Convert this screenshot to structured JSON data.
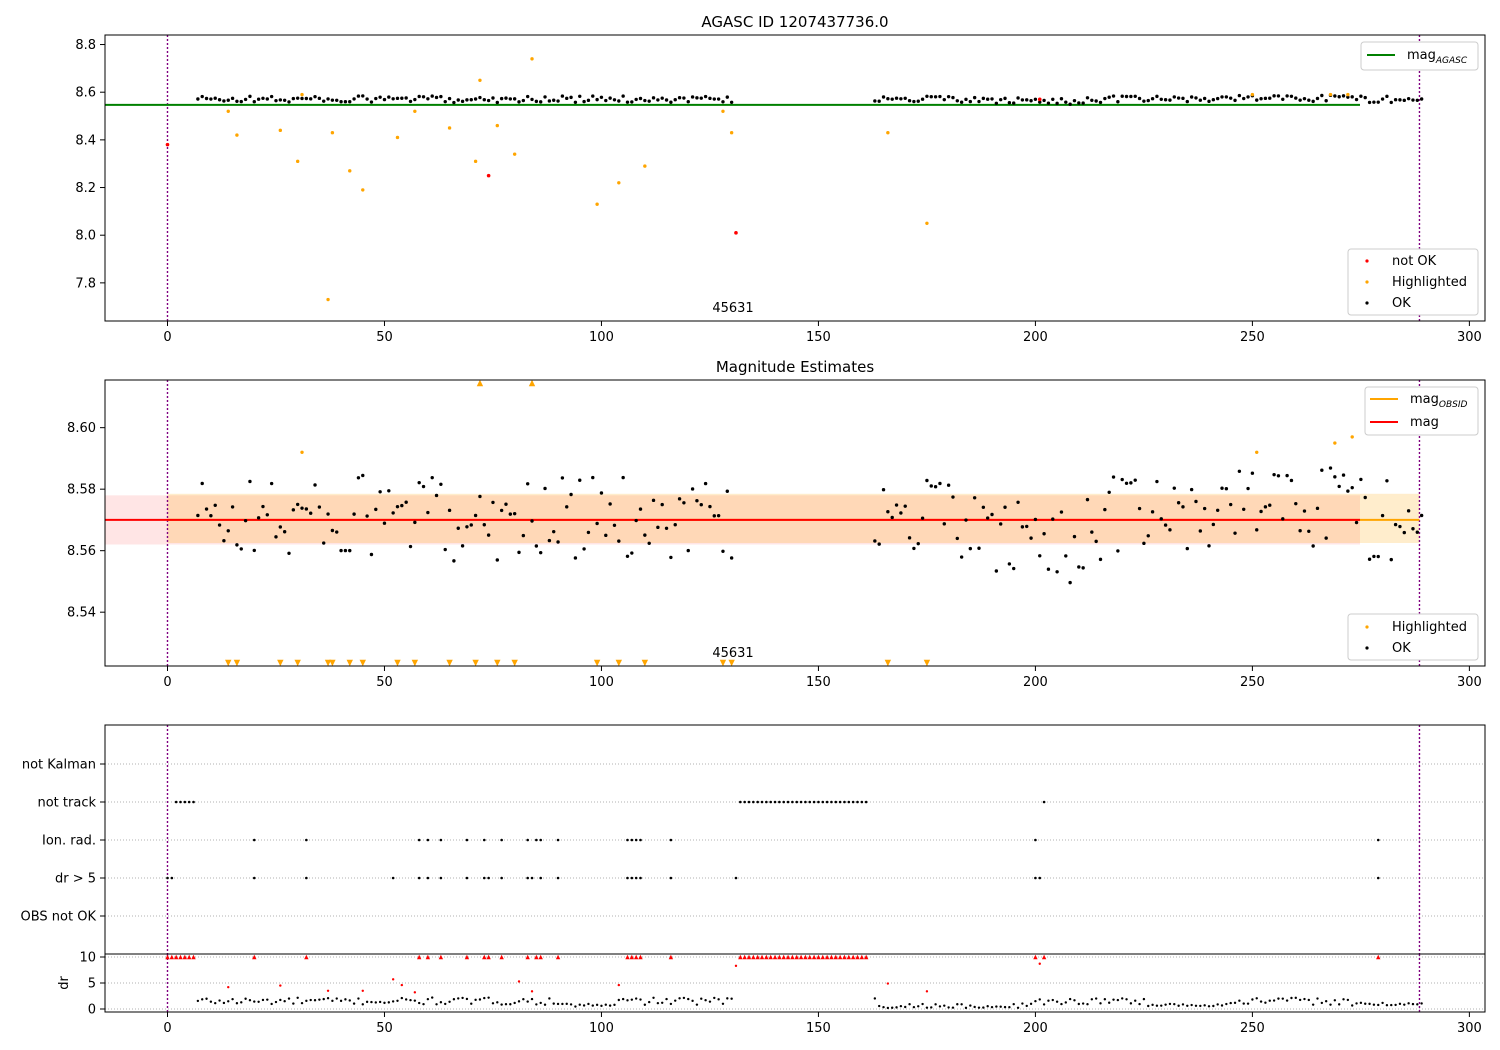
{
  "chart_data": [
    {
      "type": "scatter",
      "title": "AGASC ID 1207437736.0",
      "annotation": "45631",
      "xlim": [
        -14.4,
        303.6
      ],
      "ylim": [
        7.64,
        8.84
      ],
      "x_ticks": [
        0,
        50,
        100,
        150,
        200,
        250,
        300
      ],
      "y_ticks": [
        7.8,
        8.0,
        8.2,
        8.4,
        8.6,
        8.8
      ],
      "y_tick_labels": [
        "7.8",
        "8.0",
        "8.2",
        "8.4",
        "8.6",
        "8.8"
      ],
      "legend_lines": [
        {
          "label": "mag",
          "subscript": "AGASC",
          "color": "#008000"
        }
      ],
      "legend_points": [
        {
          "label": "not OK",
          "color": "#ff0000"
        },
        {
          "label": "Highlighted",
          "color": "#ffa500"
        },
        {
          "label": "OK",
          "color": "#000000"
        }
      ],
      "hlines": [
        {
          "y": 8.547,
          "x_range": [
            -14.4,
            303.6
          ],
          "color": "#008000"
        }
      ],
      "vlines": [
        0,
        288.5
      ],
      "highlighted": {
        "x": [
          14,
          16,
          26,
          30,
          31,
          37,
          38,
          42,
          45,
          53,
          57,
          65,
          71,
          72,
          76,
          80,
          84,
          99,
          104,
          110,
          128,
          130,
          166,
          175,
          250,
          268,
          272
        ],
        "y": [
          8.52,
          8.42,
          8.44,
          8.31,
          8.59,
          7.73,
          8.43,
          8.27,
          8.19,
          8.41,
          8.52,
          8.45,
          8.31,
          8.65,
          8.46,
          8.34,
          8.74,
          8.13,
          8.22,
          8.29,
          8.52,
          8.43,
          8.43,
          8.05,
          8.59,
          8.59,
          8.59
        ]
      },
      "not_ok": {
        "x": [
          0,
          74,
          131,
          201
        ],
        "y": [
          8.38,
          8.25,
          8.01,
          8.57
        ]
      }
    },
    {
      "type": "scatter",
      "title": "Magnitude Estimates",
      "annotation": "45631",
      "xlim": [
        -14.4,
        303.6
      ],
      "ylim": [
        8.5225,
        8.6155
      ],
      "x_ticks": [
        0,
        50,
        100,
        150,
        200,
        250,
        300
      ],
      "y_ticks": [
        8.54,
        8.56,
        8.58,
        8.6
      ],
      "y_tick_labels": [
        "8.54",
        "8.56",
        "8.58",
        "8.60"
      ],
      "legend_lines": [
        {
          "label": "mag",
          "subscript": "OBSID",
          "color": "#ffa500"
        },
        {
          "label": "mag",
          "subscript": "",
          "color": "#ff0000"
        }
      ],
      "legend_points": [
        {
          "label": "Highlighted",
          "color": "#ffa500"
        },
        {
          "label": "OK",
          "color": "#000000"
        }
      ],
      "mag": 8.57,
      "mag_band": [
        8.562,
        8.578
      ],
      "mag_obsid_band": [
        8.5625,
        8.5785
      ],
      "vlines": [
        0,
        288.5
      ],
      "highlighted": {
        "x": [
          31,
          251,
          269,
          273
        ],
        "y": [
          8.592,
          8.592,
          8.595,
          8.597
        ]
      },
      "above_range_x": [
        72,
        84
      ],
      "below_range_x": [
        14,
        16,
        26,
        30,
        37,
        38,
        42,
        45,
        53,
        57,
        65,
        71,
        76,
        80,
        99,
        104,
        110,
        128,
        130,
        166,
        175
      ]
    },
    {
      "type": "scatter",
      "title": "",
      "xlim": [
        -14.4,
        303.6
      ],
      "x_ticks": [
        0,
        50,
        100,
        150,
        200,
        250,
        300
      ],
      "categories": [
        "not Kalman",
        "not track",
        "Ion. rad.",
        "dr > 5",
        "OBS not OK"
      ],
      "flags": {
        "not track": [
          2,
          3,
          4,
          5,
          6,
          132,
          133,
          134,
          135,
          136,
          137,
          138,
          139,
          140,
          141,
          142,
          143,
          144,
          145,
          146,
          147,
          148,
          149,
          150,
          151,
          152,
          153,
          154,
          155,
          156,
          157,
          158,
          159,
          160,
          161,
          202
        ],
        "Ion. rad.": [
          20,
          32,
          58,
          60,
          63,
          69,
          73,
          77,
          83,
          85,
          86,
          90,
          106,
          107,
          108,
          109,
          116,
          200,
          279
        ],
        "dr > 5": [
          0,
          1,
          20,
          32,
          52,
          58,
          60,
          63,
          69,
          73,
          74,
          77,
          83,
          84,
          86,
          90,
          106,
          107,
          108,
          109,
          116,
          131,
          200,
          201,
          279
        ],
        "OBS not OK": []
      },
      "vlines": [
        0,
        288.5
      ]
    },
    {
      "type": "scatter",
      "title": "",
      "ylabel": "dr",
      "xlim": [
        -14.4,
        303.6
      ],
      "ylim": [
        -0.5,
        11
      ],
      "x_ticks": [
        0,
        50,
        100,
        150,
        200,
        250,
        300
      ],
      "y_ticks": [
        0,
        5,
        10
      ],
      "clip_value": 10,
      "clipped_x": [
        0,
        1,
        2,
        3,
        4,
        5,
        6,
        20,
        32,
        58,
        60,
        63,
        69,
        73,
        74,
        77,
        83,
        85,
        86,
        90,
        106,
        107,
        108,
        109,
        116,
        132,
        133,
        134,
        135,
        136,
        137,
        138,
        139,
        140,
        141,
        142,
        143,
        144,
        145,
        146,
        147,
        148,
        149,
        150,
        151,
        152,
        153,
        154,
        155,
        156,
        157,
        158,
        159,
        160,
        161,
        200,
        202,
        279
      ],
      "red_points": {
        "x": [
          14,
          26,
          37,
          45,
          52,
          54,
          57,
          81,
          84,
          104,
          131,
          166,
          175,
          201
        ],
        "y": [
          4.2,
          4.5,
          3.5,
          3.5,
          5.7,
          4.6,
          3.2,
          5.3,
          3.4,
          4.6,
          8.3,
          4.9,
          3.4,
          8.7
        ]
      },
      "vlines": [
        0,
        288.5
      ]
    }
  ]
}
